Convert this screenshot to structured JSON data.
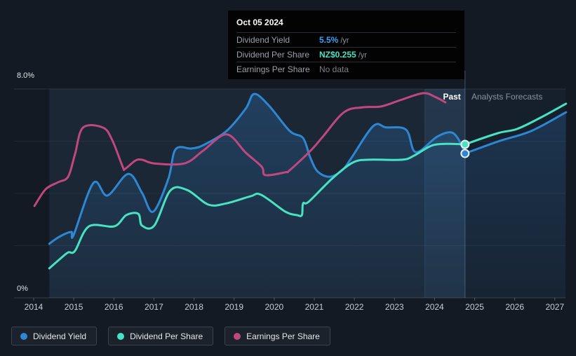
{
  "tooltip": {
    "date": "Oct 05 2024",
    "rows": [
      {
        "label": "Dividend Yield",
        "value": "5.5%",
        "suffix": "/yr",
        "color": "#3ba3f7"
      },
      {
        "label": "Dividend Per Share",
        "value": "NZ$0.255",
        "suffix": "/yr",
        "color": "#47e3c3"
      },
      {
        "label": "Earnings Per Share",
        "value": "No data",
        "suffix": "",
        "color": "#7b8087"
      }
    ]
  },
  "y_axis": {
    "top_label": "8.0%",
    "bottom_label": "0%"
  },
  "x_axis": {
    "years": [
      "2014",
      "2015",
      "2016",
      "2017",
      "2018",
      "2019",
      "2020",
      "2021",
      "2022",
      "2023",
      "2024",
      "2025",
      "2026",
      "2027"
    ]
  },
  "annotations": {
    "past": "Past",
    "forecast": "Analysts Forecasts"
  },
  "legend": [
    {
      "label": "Dividend Yield",
      "color": "#2d87d3"
    },
    {
      "label": "Dividend Per Share",
      "color": "#47e3c3"
    },
    {
      "label": "Earnings Per Share",
      "color": "#c0487f"
    }
  ],
  "colors": {
    "background": "#141a23",
    "grid_major": "rgba(255,255,255,0.10)",
    "grid_minor": "rgba(255,255,255,0.055)",
    "baseline": "rgba(255,255,255,0.16)",
    "band_fill": "rgba(95,155,220,0.10)",
    "past_fill_top": "rgba(49,128,205,0.28)",
    "past_fill_bottom": "rgba(49,128,205,0.05)",
    "forecast_overlay": "rgba(52,90,140,0.10)",
    "boundary_line": "rgba(130,165,210,0.40)",
    "marker_ring": "#e9f1f9"
  },
  "chart_data": {
    "type": "line",
    "title": "Dividend history and forecast",
    "ylabel": "percent",
    "y_axis": {
      "min": 0,
      "max": 8,
      "gridline_step": 2,
      "labels_shown": [
        "8.0%",
        "0%"
      ]
    },
    "x_axis": {
      "min": 2014,
      "max": 2027.3,
      "ticks": [
        2014,
        2015,
        2016,
        2017,
        2018,
        2019,
        2020,
        2021,
        2022,
        2023,
        2024,
        2025,
        2026,
        2027
      ]
    },
    "past_forecast_boundary": 2024.76,
    "highlight_window": [
      2023.76,
      2024.76
    ],
    "legend_position": "bottom-left",
    "grid": "horizontal-only",
    "series": [
      {
        "name": "Dividend Yield",
        "color": "#2d87d3",
        "unit": "% per yr",
        "area_fill": true,
        "past": [
          [
            2014.39,
            2.07
          ],
          [
            2014.53,
            2.23
          ],
          [
            2014.7,
            2.39
          ],
          [
            2014.86,
            2.5
          ],
          [
            2014.95,
            2.52
          ],
          [
            2015.0,
            2.42
          ],
          [
            2015.49,
            4.4
          ],
          [
            2015.84,
            3.92
          ],
          [
            2016.36,
            4.75
          ],
          [
            2016.7,
            4.03
          ],
          [
            2016.98,
            3.3
          ],
          [
            2017.36,
            4.56
          ],
          [
            2017.54,
            5.69
          ],
          [
            2017.94,
            5.72
          ],
          [
            2018.23,
            5.85
          ],
          [
            2018.81,
            6.39
          ],
          [
            2019.29,
            7.25
          ],
          [
            2019.5,
            7.81
          ],
          [
            2019.86,
            7.38
          ],
          [
            2020.39,
            6.39
          ],
          [
            2020.72,
            6.12
          ],
          [
            2020.9,
            5.37
          ],
          [
            2021.09,
            4.83
          ],
          [
            2021.39,
            4.64
          ],
          [
            2021.7,
            4.89
          ],
          [
            2021.91,
            5.32
          ],
          [
            2022.47,
            6.58
          ],
          [
            2022.79,
            6.53
          ],
          [
            2023.29,
            6.44
          ],
          [
            2023.53,
            5.58
          ],
          [
            2024.06,
            6.17
          ],
          [
            2024.4,
            6.34
          ],
          [
            2024.59,
            6.09
          ],
          [
            2024.76,
            5.53
          ]
        ],
        "forecast": [
          [
            2024.76,
            5.53
          ],
          [
            2025.58,
            5.99
          ],
          [
            2026.41,
            6.39
          ],
          [
            2027.28,
            7.11
          ]
        ]
      },
      {
        "name": "Dividend Per Share",
        "color": "#47e3c3",
        "unit": "NZ$ (overlaid on % axis, current NZ$0.255/yr)",
        "past": [
          [
            2014.39,
            1.13
          ],
          [
            2014.65,
            1.48
          ],
          [
            2014.86,
            1.74
          ],
          [
            2015.03,
            1.8
          ],
          [
            2015.38,
            2.74
          ],
          [
            2016.01,
            2.74
          ],
          [
            2016.31,
            3.17
          ],
          [
            2016.61,
            3.22
          ],
          [
            2016.7,
            2.77
          ],
          [
            2017.01,
            2.77
          ],
          [
            2017.41,
            4.11
          ],
          [
            2017.83,
            4.13
          ],
          [
            2018.36,
            3.57
          ],
          [
            2018.81,
            3.62
          ],
          [
            2019.41,
            3.89
          ],
          [
            2019.67,
            3.95
          ],
          [
            2020.28,
            3.3
          ],
          [
            2020.56,
            3.17
          ],
          [
            2020.69,
            3.17
          ],
          [
            2020.72,
            3.62
          ],
          [
            2020.86,
            3.68
          ],
          [
            2021.44,
            4.56
          ],
          [
            2021.96,
            5.18
          ],
          [
            2022.38,
            5.29
          ],
          [
            2023.19,
            5.29
          ],
          [
            2023.49,
            5.45
          ],
          [
            2023.84,
            5.77
          ],
          [
            2024.06,
            5.88
          ],
          [
            2024.4,
            5.9
          ],
          [
            2024.76,
            5.88
          ]
        ],
        "forecast": [
          [
            2024.76,
            5.88
          ],
          [
            2025.58,
            6.31
          ],
          [
            2026.06,
            6.47
          ],
          [
            2026.64,
            6.9
          ],
          [
            2027.28,
            7.44
          ]
        ]
      },
      {
        "name": "Earnings Per Share",
        "color": "#c0487f",
        "unit": "% per yr",
        "past": [
          [
            2014.02,
            3.52
          ],
          [
            2014.3,
            4.16
          ],
          [
            2014.61,
            4.43
          ],
          [
            2014.86,
            4.64
          ],
          [
            2015.03,
            5.5
          ],
          [
            2015.23,
            6.52
          ],
          [
            2015.73,
            6.52
          ],
          [
            2015.96,
            6.04
          ],
          [
            2016.22,
            5.02
          ],
          [
            2016.28,
            4.94
          ],
          [
            2016.54,
            5.26
          ],
          [
            2016.7,
            5.29
          ],
          [
            2017.01,
            5.15
          ],
          [
            2017.76,
            5.15
          ],
          [
            2018.23,
            5.64
          ],
          [
            2018.81,
            6.26
          ],
          [
            2019.29,
            5.56
          ],
          [
            2019.69,
            5.02
          ],
          [
            2019.78,
            4.7
          ],
          [
            2020.28,
            4.81
          ],
          [
            2020.39,
            4.89
          ],
          [
            2020.91,
            5.64
          ],
          [
            2021.21,
            6.17
          ],
          [
            2021.74,
            7.11
          ],
          [
            2022.21,
            7.3
          ],
          [
            2022.66,
            7.33
          ],
          [
            2023.14,
            7.57
          ],
          [
            2023.71,
            7.84
          ],
          [
            2024.01,
            7.7
          ],
          [
            2024.27,
            7.49
          ]
        ],
        "forecast": []
      }
    ],
    "markers": [
      {
        "series": "Dividend Per Share",
        "x": 2024.76,
        "y": 5.88
      },
      {
        "series": "Dividend Yield",
        "x": 2024.76,
        "y": 5.53
      }
    ]
  }
}
